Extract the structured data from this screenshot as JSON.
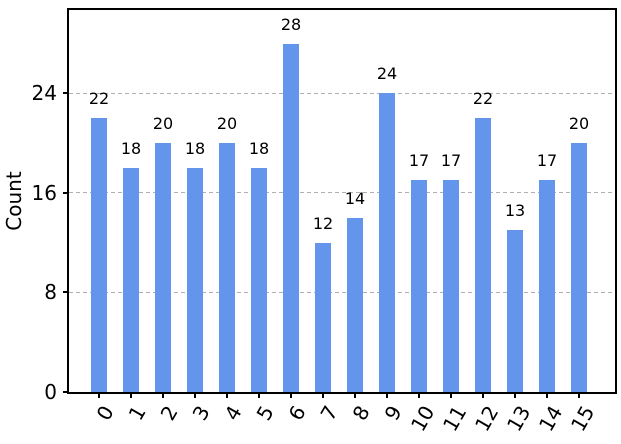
{
  "chart_data": {
    "type": "bar",
    "title": "",
    "xlabel": "",
    "ylabel": "Count",
    "categories": [
      "0",
      "1",
      "2",
      "3",
      "4",
      "5",
      "6",
      "7",
      "8",
      "9",
      "10",
      "11",
      "12",
      "13",
      "14",
      "15"
    ],
    "values": [
      22,
      18,
      20,
      18,
      20,
      18,
      28,
      12,
      14,
      24,
      17,
      17,
      22,
      13,
      17,
      20
    ],
    "value_labels_shown": true,
    "yticks": [
      0,
      8,
      16,
      24
    ],
    "ylim": [
      0,
      30.7
    ],
    "xtick_rotation_degrees": 60,
    "grid": "horizontal-dashed",
    "grid_behind_bars": true,
    "bar_color": "#6495ED",
    "grid_color": "#b0b0b0",
    "axis_color": "#000000",
    "background_color": "#ffffff"
  }
}
